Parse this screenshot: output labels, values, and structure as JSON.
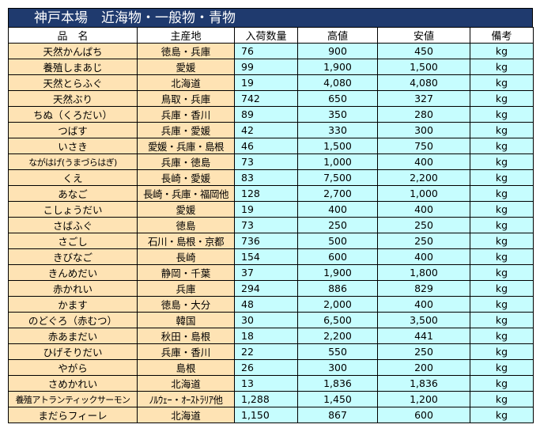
{
  "title": "神戸本場　近海物・一般物・青物",
  "columns": [
    "品　名",
    "主産地",
    "入荷数量",
    "高値",
    "安値",
    "備考"
  ],
  "rows": [
    {
      "name": "天然かんぱち",
      "origin": "徳島・兵庫",
      "qty": "76",
      "high": "900",
      "low": "450",
      "unit": "kg"
    },
    {
      "name": "養殖しまあじ",
      "origin": "愛媛",
      "qty": "99",
      "high": "1,900",
      "low": "1,500",
      "unit": "kg"
    },
    {
      "name": "天然とらふぐ",
      "origin": "北海道",
      "qty": "19",
      "high": "4,080",
      "low": "4,080",
      "unit": "kg"
    },
    {
      "name": "天然ぶり",
      "origin": "鳥取・兵庫",
      "qty": "742",
      "high": "650",
      "low": "327",
      "unit": "kg"
    },
    {
      "name": "ちぬ（くろだい）",
      "origin": "兵庫・香川",
      "qty": "89",
      "high": "350",
      "low": "280",
      "unit": "kg"
    },
    {
      "name": "つばす",
      "origin": "兵庫・愛媛",
      "qty": "42",
      "high": "330",
      "low": "300",
      "unit": "kg"
    },
    {
      "name": "いさき",
      "origin": "愛媛・兵庫・島根",
      "qty": "46",
      "high": "1,500",
      "low": "750",
      "unit": "kg"
    },
    {
      "name": "ながはげ(うまづらはぎ)",
      "origin": "兵庫・徳島",
      "qty": "73",
      "high": "1,000",
      "low": "400",
      "unit": "kg"
    },
    {
      "name": "くえ",
      "origin": "長崎・愛媛",
      "qty": "83",
      "high": "7,500",
      "low": "2,200",
      "unit": "kg"
    },
    {
      "name": "あなご",
      "origin": "長崎・兵庫・福岡他",
      "qty": "128",
      "high": "2,700",
      "low": "1,000",
      "unit": "kg"
    },
    {
      "name": "こしょうだい",
      "origin": "愛媛",
      "qty": "19",
      "high": "400",
      "low": "400",
      "unit": "kg"
    },
    {
      "name": "さばふぐ",
      "origin": "徳島",
      "qty": "73",
      "high": "250",
      "low": "250",
      "unit": "kg"
    },
    {
      "name": "さごし",
      "origin": "石川・島根・京都",
      "qty": "736",
      "high": "500",
      "low": "250",
      "unit": "kg"
    },
    {
      "name": "きびなご",
      "origin": "長崎",
      "qty": "154",
      "high": "600",
      "low": "400",
      "unit": "kg"
    },
    {
      "name": "きんめだい",
      "origin": "静岡・千葉",
      "qty": "37",
      "high": "1,900",
      "low": "1,800",
      "unit": "kg"
    },
    {
      "name": "赤かれい",
      "origin": "兵庫",
      "qty": "294",
      "high": "886",
      "low": "829",
      "unit": "kg"
    },
    {
      "name": "かます",
      "origin": "徳島・大分",
      "qty": "48",
      "high": "2,000",
      "low": "400",
      "unit": "kg"
    },
    {
      "name": "のどぐろ（赤むつ）",
      "origin": "韓国",
      "qty": "30",
      "high": "6,500",
      "low": "3,500",
      "unit": "kg"
    },
    {
      "name": "赤あまだい",
      "origin": "秋田・島根",
      "qty": "18",
      "high": "2,200",
      "low": "441",
      "unit": "kg"
    },
    {
      "name": "ひげそりだい",
      "origin": "兵庫・香川",
      "qty": "22",
      "high": "550",
      "low": "250",
      "unit": "kg"
    },
    {
      "name": "やがら",
      "origin": "島根",
      "qty": "26",
      "high": "300",
      "low": "200",
      "unit": "kg"
    },
    {
      "name": "さめかれい",
      "origin": "北海道",
      "qty": "13",
      "high": "1,836",
      "low": "1,836",
      "unit": "kg"
    },
    {
      "name": "養殖アトランティックサーモン",
      "origin": "ﾉﾙｳｪｰ・ｵｰｽﾄﾗﾘｱ他",
      "qty": "1,288",
      "high": "1,450",
      "low": "1,200",
      "unit": "kg"
    },
    {
      "name": "まだらフィーレ",
      "origin": "北海道",
      "qty": "1,150",
      "high": "867",
      "low": "600",
      "unit": "kg"
    }
  ],
  "colors": {
    "title_bg": "#1f3a6e",
    "name_bg": "#fee3b4",
    "value_bg": "#c6fdfe"
  }
}
